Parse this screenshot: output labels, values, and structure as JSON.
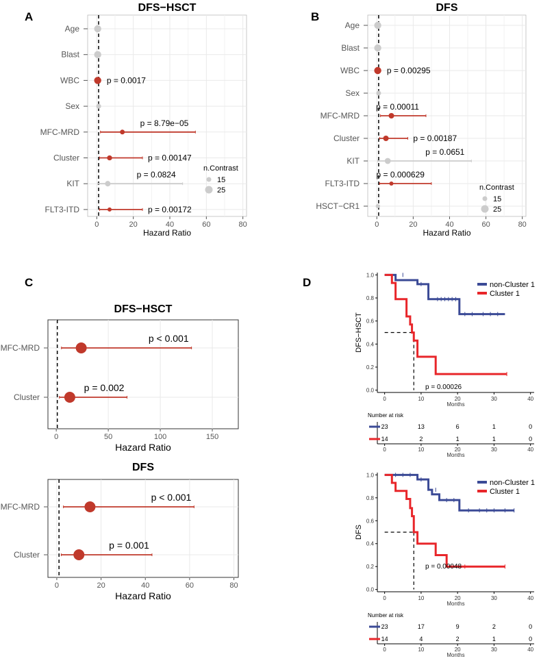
{
  "panel_labels": {
    "a": "A",
    "b": "B",
    "c": "C",
    "d": "D"
  },
  "chart_data": [
    {
      "id": "A",
      "type": "forest",
      "title": "DFS−HSCT",
      "xlabel": "Hazard Ratio",
      "xlim": [
        -5,
        82
      ],
      "xticks": [
        0,
        20,
        40,
        60,
        80
      ],
      "legend_title": "n.Contrast",
      "legend_values": [
        "15",
        "25"
      ],
      "rows": [
        {
          "label": "Age",
          "hr": 0.5,
          "lo": 0.5,
          "hi": 0.5,
          "p": "",
          "significant": false,
          "n": 25
        },
        {
          "label": "Blast",
          "hr": 0.5,
          "lo": 0.5,
          "hi": 0.5,
          "p": "",
          "significant": false,
          "n": 25
        },
        {
          "label": "WBC",
          "hr": 0.5,
          "lo": 0.5,
          "hi": 0.5,
          "p": "p = 0.0017",
          "significant": true,
          "n": 25
        },
        {
          "label": "Sex",
          "hr": 1,
          "lo": 0.5,
          "hi": 2,
          "p": "",
          "significant": false,
          "n": 15
        },
        {
          "label": "MFC-MRD",
          "hr": 14,
          "lo": 2,
          "hi": 54,
          "p": "p = 8.79e−05",
          "significant": true,
          "n": 15
        },
        {
          "label": "Cluster",
          "hr": 7,
          "lo": 1.5,
          "hi": 25,
          "p": "p = 0.00147",
          "significant": true,
          "n": 16
        },
        {
          "label": "KIT",
          "hr": 6,
          "lo": 0.5,
          "hi": 47,
          "p": "p = 0.0824",
          "significant": false,
          "n": 18
        },
        {
          "label": "FLT3-ITD",
          "hr": 7,
          "lo": 1.5,
          "hi": 25,
          "p": "p = 0.00172",
          "significant": true,
          "n": 12
        }
      ]
    },
    {
      "id": "B",
      "type": "forest",
      "title": "DFS",
      "xlabel": "Hazard Ratio",
      "xlim": [
        -5,
        82
      ],
      "xticks": [
        0,
        20,
        40,
        60,
        80
      ],
      "legend_title": "n.Contrast",
      "legend_values": [
        "15",
        "25"
      ],
      "rows": [
        {
          "label": "Age",
          "hr": 0.5,
          "lo": 0.5,
          "hi": 0.5,
          "p": "",
          "significant": false,
          "n": 25
        },
        {
          "label": "Blast",
          "hr": 0.5,
          "lo": 0.5,
          "hi": 0.5,
          "p": "",
          "significant": false,
          "n": 25
        },
        {
          "label": "WBC",
          "hr": 0.5,
          "lo": 0.5,
          "hi": 0.5,
          "p": "p = 0.00295",
          "significant": true,
          "n": 25
        },
        {
          "label": "Sex",
          "hr": 1,
          "lo": 0.5,
          "hi": 1.5,
          "p": "",
          "significant": false,
          "n": 15
        },
        {
          "label": "MFC-MRD",
          "hr": 8,
          "lo": 2,
          "hi": 27,
          "p": "p = 0.00011",
          "significant": true,
          "n": 18
        },
        {
          "label": "Cluster",
          "hr": 5,
          "lo": 1.5,
          "hi": 17,
          "p": "p = 0.00187",
          "significant": true,
          "n": 18
        },
        {
          "label": "KIT",
          "hr": 6,
          "lo": 0.5,
          "hi": 52,
          "p": "p = 0.0651",
          "significant": false,
          "n": 20
        },
        {
          "label": "FLT3-ITD",
          "hr": 8,
          "lo": 1.5,
          "hi": 30,
          "p": "p = 0.000629",
          "significant": true,
          "n": 12
        },
        {
          "label": "HSCT−CR1",
          "hr": 0.5,
          "lo": 0.2,
          "hi": 1.5,
          "p": "",
          "significant": false,
          "n": 12
        }
      ]
    },
    {
      "id": "C1",
      "type": "forest",
      "title": "DFS−HSCT",
      "xlabel": "Hazard Ratio",
      "xlim": [
        -8,
        175
      ],
      "xticks": [
        0,
        50,
        100,
        150
      ],
      "rows": [
        {
          "label": "MFC-MRD",
          "hr": 24,
          "lo": 5,
          "hi": 130,
          "p": "p < 0.001"
        },
        {
          "label": "Cluster",
          "hr": 13,
          "lo": 3,
          "hi": 68,
          "p": "p = 0.002"
        }
      ]
    },
    {
      "id": "C2",
      "type": "forest",
      "title": "DFS",
      "xlabel": "Hazard Ratio",
      "xlim": [
        -4,
        82
      ],
      "xticks": [
        0,
        20,
        40,
        60,
        80
      ],
      "rows": [
        {
          "label": "MFC-MRD",
          "hr": 15,
          "lo": 3,
          "hi": 62,
          "p": "p < 0.001"
        },
        {
          "label": "Cluster",
          "hr": 10,
          "lo": 2,
          "hi": 43,
          "p": "p = 0.001"
        }
      ]
    },
    {
      "id": "D1",
      "type": "line",
      "subtype": "kaplan-meier",
      "ylabel": "DFS−HSCT",
      "xlabel": "Months",
      "xlim": [
        -2,
        41
      ],
      "ylim": [
        -0.02,
        1.02
      ],
      "xticks": [
        0,
        10,
        20,
        30,
        40
      ],
      "yticks": [
        "0.0",
        "0.2",
        "0.4",
        "0.6",
        "0.8",
        "1.0"
      ],
      "median_x": 8,
      "p": "p = 0.00026",
      "series": [
        {
          "name": "non-Cluster 1",
          "color": "#3b4a96",
          "x": [
            0,
            3,
            3,
            9,
            9,
            12,
            12,
            20.5,
            20.5,
            33
          ],
          "y": [
            1,
            1,
            0.955,
            0.955,
            0.92,
            0.92,
            0.79,
            0.79,
            0.66,
            0.66
          ],
          "censor": [
            [
              5,
              1
            ],
            [
              10,
              0.92
            ],
            [
              14.5,
              0.79
            ],
            [
              15.5,
              0.79
            ],
            [
              16.5,
              0.79
            ],
            [
              17.5,
              0.79
            ],
            [
              18.5,
              0.79
            ],
            [
              19.5,
              0.79
            ],
            [
              22,
              0.66
            ],
            [
              24,
              0.66
            ],
            [
              27,
              0.66
            ],
            [
              29,
              0.66
            ],
            [
              31,
              0.66
            ]
          ]
        },
        {
          "name": "Cluster 1",
          "color": "#e8262a",
          "x": [
            0,
            2,
            2,
            3,
            3,
            6,
            6,
            7,
            7,
            7.5,
            7.5,
            8,
            8,
            9,
            9,
            14,
            14,
            33.5
          ],
          "y": [
            1,
            1,
            0.93,
            0.93,
            0.79,
            0.79,
            0.64,
            0.64,
            0.57,
            0.57,
            0.5,
            0.5,
            0.43,
            0.43,
            0.29,
            0.29,
            0.14,
            0.14
          ],
          "censor": [
            [
              33.5,
              0.14
            ]
          ]
        }
      ],
      "risk": {
        "title": "Number at risk",
        "times": [
          0,
          10,
          20,
          30,
          40
        ],
        "rows": [
          {
            "name": "non-Cluster 1",
            "color": "#3b4a96",
            "values": [
              "23",
              "13",
              "6",
              "1",
              "0"
            ]
          },
          {
            "name": "Cluster 1",
            "color": "#e8262a",
            "values": [
              "14",
              "2",
              "1",
              "1",
              "0"
            ]
          }
        ],
        "xlabel": "Months"
      }
    },
    {
      "id": "D2",
      "type": "line",
      "subtype": "kaplan-meier",
      "ylabel": "DFS",
      "xlabel": "Months",
      "xlim": [
        -2,
        41
      ],
      "ylim": [
        -0.02,
        1.02
      ],
      "xticks": [
        0,
        10,
        20,
        30,
        40
      ],
      "yticks": [
        "0.0",
        "0.2",
        "0.4",
        "0.6",
        "0.8",
        "1.0"
      ],
      "median_x": 8,
      "p": "p = 0.00048",
      "series": [
        {
          "name": "non-Cluster 1",
          "color": "#3b4a96",
          "x": [
            0,
            9,
            9,
            12,
            12,
            13,
            13,
            15,
            15,
            20.5,
            20.5,
            35.5
          ],
          "y": [
            1,
            1,
            0.96,
            0.96,
            0.87,
            0.87,
            0.83,
            0.83,
            0.78,
            0.78,
            0.69,
            0.69
          ],
          "censor": [
            [
              3,
              1
            ],
            [
              5,
              1
            ],
            [
              7,
              1
            ],
            [
              10,
              0.96
            ],
            [
              14,
              0.87
            ],
            [
              17,
              0.78
            ],
            [
              19,
              0.78
            ],
            [
              23,
              0.69
            ],
            [
              26,
              0.69
            ],
            [
              28,
              0.69
            ],
            [
              30,
              0.69
            ],
            [
              33,
              0.69
            ],
            [
              35.5,
              0.69
            ]
          ]
        },
        {
          "name": "Cluster 1",
          "color": "#e8262a",
          "x": [
            0,
            2,
            2,
            3,
            3,
            6,
            6,
            7,
            7,
            7.5,
            7.5,
            8,
            8,
            9,
            9,
            14,
            14,
            17,
            17,
            33
          ],
          "y": [
            1,
            1,
            0.93,
            0.93,
            0.86,
            0.86,
            0.79,
            0.79,
            0.71,
            0.71,
            0.64,
            0.64,
            0.5,
            0.5,
            0.4,
            0.4,
            0.3,
            0.3,
            0.2,
            0.2
          ],
          "censor": [
            [
              22,
              0.2
            ],
            [
              33,
              0.2
            ]
          ]
        }
      ],
      "risk": {
        "title": "Number at risk",
        "times": [
          0,
          10,
          20,
          30,
          40
        ],
        "rows": [
          {
            "name": "non-Cluster 1",
            "color": "#3b4a96",
            "values": [
              "23",
              "17",
              "9",
              "2",
              "0"
            ]
          },
          {
            "name": "Cluster 1",
            "color": "#e8262a",
            "values": [
              "14",
              "4",
              "2",
              "1",
              "0"
            ]
          }
        ],
        "xlabel": "Months"
      }
    }
  ]
}
